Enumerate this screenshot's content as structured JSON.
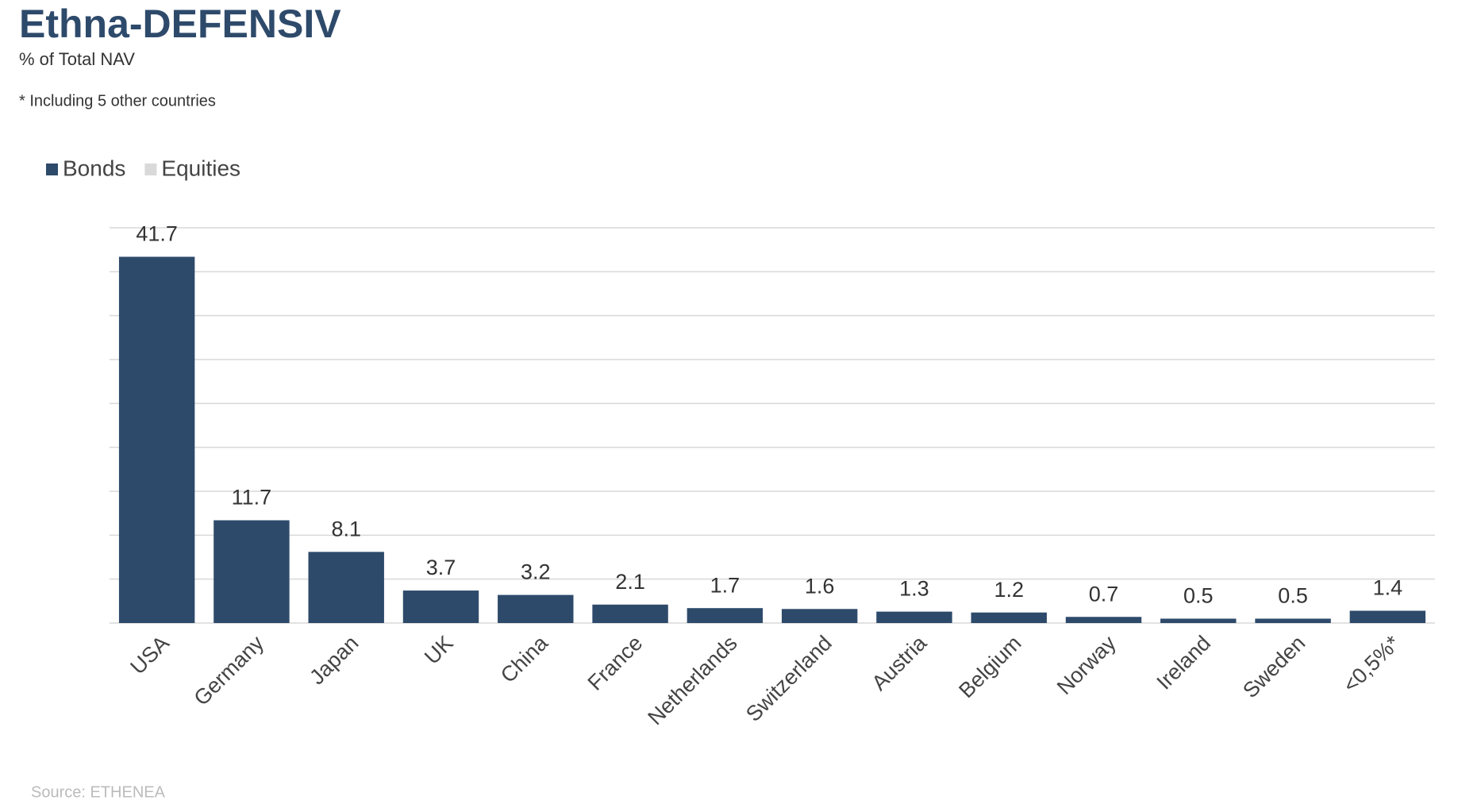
{
  "chart_data": {
    "type": "stacked_bar",
    "title": "Ethna-DEFENSIV",
    "subtitle": "% of Total NAV",
    "annotation": "* Including 5 other countries",
    "source": "Source: ETHENEA",
    "categories": [
      "USA",
      "Germany",
      "Japan",
      "UK",
      "China",
      "France",
      "Netherlands",
      "Switzerland",
      "Austria",
      "Belgium",
      "Norway",
      "Ireland",
      "Sweden",
      "<0,5%*"
    ],
    "series": [
      {
        "name": "Bonds",
        "color": "#2e4a6b",
        "values": [
          41.7,
          11.7,
          8.1,
          3.7,
          3.2,
          2.1,
          1.7,
          1.6,
          1.3,
          1.2,
          0.7,
          0.5,
          0.5,
          1.4
        ]
      },
      {
        "name": "Equities",
        "color": "#d9d9d9",
        "values": [
          0,
          0,
          0,
          0,
          0,
          0,
          0,
          0,
          0,
          0,
          0,
          0,
          0,
          0
        ]
      }
    ],
    "ylim": [
      0,
      45
    ],
    "yticks": [
      0,
      5,
      10,
      15,
      20,
      25,
      30,
      35,
      40,
      45
    ],
    "grid": true,
    "legend": "top-left"
  }
}
